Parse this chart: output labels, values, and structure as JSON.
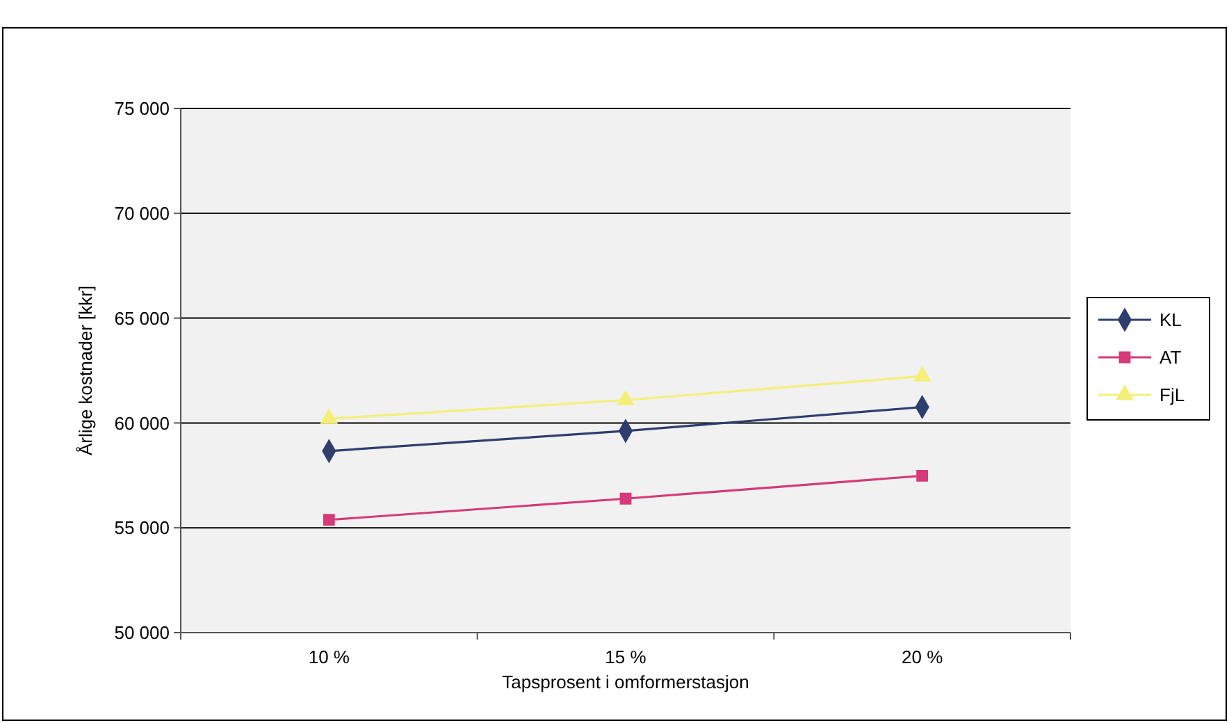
{
  "chart_data": {
    "type": "line",
    "xlabel": "Tapsprosent i omformerstasjon",
    "ylabel": "Årlige kostnader [kkr]",
    "categories": [
      "10 %",
      "15 %",
      "20 %"
    ],
    "series": [
      {
        "name": "KL",
        "color": "#2e3e6e",
        "marker": "diamond",
        "values": [
          58660,
          59620,
          60760
        ]
      },
      {
        "name": "AT",
        "color": "#d63a78",
        "marker": "square",
        "values": [
          55380,
          56390,
          57480
        ]
      },
      {
        "name": "FjL",
        "color": "#f5ef7a",
        "marker": "triangle",
        "values": [
          60200,
          61090,
          62230
        ]
      }
    ],
    "ylim": [
      50000,
      75000
    ],
    "yticks": [
      {
        "value": 50000,
        "label": "50 000"
      },
      {
        "value": 55000,
        "label": "55 000"
      },
      {
        "value": 60000,
        "label": "60 000"
      },
      {
        "value": 65000,
        "label": "65 000"
      },
      {
        "value": 70000,
        "label": "70 000"
      },
      {
        "value": 75000,
        "label": "75 000"
      }
    ],
    "grid": "y",
    "legend": "right",
    "line_style": "solid"
  }
}
